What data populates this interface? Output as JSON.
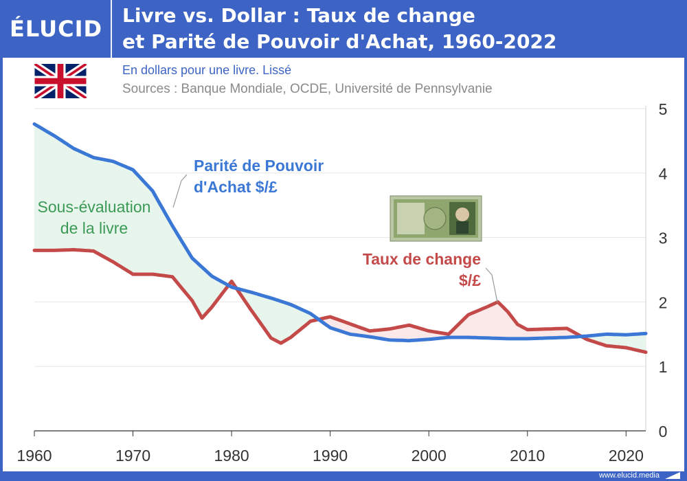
{
  "header": {
    "logo_text": "ÉLUCID",
    "title_line1": "Livre vs. Dollar : Taux de change",
    "title_line2": "et Parité de Pouvoir d'Achat, 1960-2022"
  },
  "subtitle": "En dollars pour une livre. Lissé",
  "sources": "Sources : Banque Mondiale, OCDE, Université de Pennsylvanie",
  "footer": {
    "url": "www.elucid.media"
  },
  "flag_icon": "uk-flag-icon",
  "banknote_icon": "pound-banknote-icon",
  "colors": {
    "background": "#3d64c4",
    "ppp_line": "#3b78d6",
    "exchange_line": "#c44a4a",
    "undervaluation_fill": "#e8f5ec",
    "overvaluation_fill": "#fbe9e9",
    "undervaluation_text": "#3a9a55"
  },
  "chart_data": {
    "type": "line",
    "x_tick_labels": [
      "1960",
      "1970",
      "1980",
      "1990",
      "2000",
      "2010",
      "2020"
    ],
    "y_tick_labels": [
      "0",
      "1",
      "2",
      "3",
      "4",
      "5"
    ],
    "xlim": [
      1960,
      2022
    ],
    "ylim": [
      0,
      5
    ],
    "grid": true,
    "series": [
      {
        "name": "Parité de Pouvoir d'Achat $/£",
        "label_line1": "Parité de Pouvoir",
        "label_line2": "d'Achat $/£",
        "x": [
          1960,
          1962,
          1964,
          1966,
          1968,
          1970,
          1972,
          1974,
          1976,
          1978,
          1980,
          1982,
          1984,
          1986,
          1988,
          1990,
          1992,
          1994,
          1996,
          1998,
          2000,
          2002,
          2004,
          2006,
          2008,
          2010,
          2012,
          2014,
          2016,
          2018,
          2020,
          2022
        ],
        "values": [
          4.76,
          4.58,
          4.38,
          4.24,
          4.18,
          4.05,
          3.72,
          3.18,
          2.68,
          2.4,
          2.23,
          2.15,
          2.06,
          1.96,
          1.82,
          1.6,
          1.5,
          1.46,
          1.41,
          1.4,
          1.42,
          1.45,
          1.45,
          1.44,
          1.43,
          1.43,
          1.44,
          1.45,
          1.47,
          1.5,
          1.49,
          1.51
        ]
      },
      {
        "name": "Taux de change $/£",
        "label_line1": "Taux de change",
        "label_line2": "$/£",
        "x": [
          1960,
          1962,
          1964,
          1966,
          1968,
          1970,
          1972,
          1974,
          1976,
          1977,
          1978,
          1980,
          1982,
          1984,
          1985,
          1986,
          1988,
          1990,
          1992,
          1994,
          1996,
          1998,
          2000,
          2002,
          2004,
          2006,
          2007,
          2008,
          2009,
          2010,
          2012,
          2014,
          2016,
          2018,
          2020,
          2022
        ],
        "values": [
          2.8,
          2.8,
          2.81,
          2.79,
          2.62,
          2.43,
          2.43,
          2.39,
          2.02,
          1.75,
          1.92,
          2.32,
          1.87,
          1.44,
          1.36,
          1.45,
          1.7,
          1.77,
          1.66,
          1.55,
          1.58,
          1.64,
          1.55,
          1.5,
          1.8,
          1.93,
          2.0,
          1.85,
          1.65,
          1.57,
          1.58,
          1.59,
          1.42,
          1.32,
          1.29,
          1.22
        ]
      }
    ],
    "annotations": [
      {
        "text_line1": "Sous-évaluation",
        "text_line2": "de la livre"
      }
    ]
  }
}
